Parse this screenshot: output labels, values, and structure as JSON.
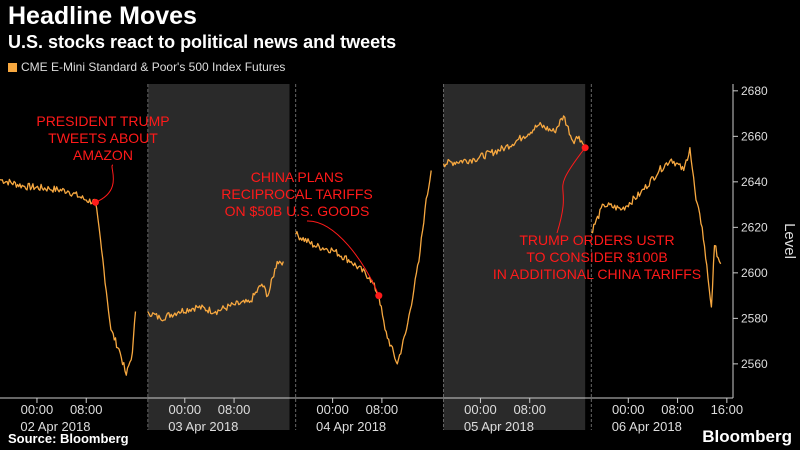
{
  "title": "Headline Moves",
  "subtitle": "U.S. stocks react to political news and tweets",
  "source": "Source: Bloomberg",
  "brand": "Bloomberg",
  "colors": {
    "line": "#f7a840",
    "annotation": "#ff1a1a",
    "shade": "#2a2a2a",
    "background": "#000000",
    "grid": "#666666"
  },
  "chart_data": {
    "type": "line",
    "series": [
      {
        "name": "CME E-Mini Standard & Poor's 500 Index Futures",
        "points": [
          [
            "2018-04-01 18:00",
            2641
          ],
          [
            "2018-04-01 22:00",
            2638
          ],
          [
            "2018-04-02 02:00",
            2637
          ],
          [
            "2018-04-02 05:00",
            2636
          ],
          [
            "2018-04-02 08:00",
            2632
          ],
          [
            "2018-04-02 09:30",
            2631
          ],
          [
            "2018-04-02 10:30",
            2610
          ],
          [
            "2018-04-02 12:00",
            2575
          ],
          [
            "2018-04-02 13:30",
            2565
          ],
          [
            "2018-04-02 14:30",
            2555
          ],
          [
            "2018-04-02 15:30",
            2565
          ],
          [
            "2018-04-02 16:00",
            2583
          ],
          [
            "2018-04-02 18:00",
            2583
          ],
          [
            "2018-04-02 20:00",
            2580
          ],
          [
            "2018-04-02 23:00",
            2583
          ],
          [
            "2018-04-03 02:00",
            2585
          ],
          [
            "2018-04-03 05:00",
            2583
          ],
          [
            "2018-04-03 08:00",
            2586
          ],
          [
            "2018-04-03 10:30",
            2587
          ],
          [
            "2018-04-03 12:30",
            2595
          ],
          [
            "2018-04-03 13:30",
            2590
          ],
          [
            "2018-04-03 15:00",
            2605
          ],
          [
            "2018-04-03 16:00",
            2605
          ],
          [
            "2018-04-03 18:00",
            2617
          ],
          [
            "2018-04-03 21:00",
            2612
          ],
          [
            "2018-04-04 00:00",
            2610
          ],
          [
            "2018-04-04 03:00",
            2605
          ],
          [
            "2018-04-04 06:00",
            2598
          ],
          [
            "2018-04-04 07:30",
            2590
          ],
          [
            "2018-04-04 08:30",
            2575
          ],
          [
            "2018-04-04 10:30",
            2560
          ],
          [
            "2018-04-04 12:00",
            2575
          ],
          [
            "2018-04-04 14:00",
            2605
          ],
          [
            "2018-04-04 15:00",
            2628
          ],
          [
            "2018-04-04 16:00",
            2645
          ],
          [
            "2018-04-04 18:00",
            2648
          ],
          [
            "2018-04-04 23:00",
            2650
          ],
          [
            "2018-04-05 04:00",
            2655
          ],
          [
            "2018-04-05 07:00",
            2660
          ],
          [
            "2018-04-05 09:30",
            2665
          ],
          [
            "2018-04-05 12:00",
            2662
          ],
          [
            "2018-04-05 13:30",
            2669
          ],
          [
            "2018-04-05 15:00",
            2658
          ],
          [
            "2018-04-05 16:00",
            2660
          ],
          [
            "2018-04-05 17:00",
            2655
          ],
          [
            "2018-04-05 18:00",
            2618
          ],
          [
            "2018-04-05 20:00",
            2630
          ],
          [
            "2018-04-05 23:00",
            2628
          ],
          [
            "2018-04-06 02:00",
            2635
          ],
          [
            "2018-04-06 05:00",
            2645
          ],
          [
            "2018-04-06 07:00",
            2650
          ],
          [
            "2018-04-06 09:00",
            2645
          ],
          [
            "2018-04-06 10:00",
            2655
          ],
          [
            "2018-04-06 11:00",
            2632
          ],
          [
            "2018-04-06 12:00",
            2620
          ],
          [
            "2018-04-06 13:30",
            2585
          ],
          [
            "2018-04-06 14:00",
            2612
          ],
          [
            "2018-04-06 15:00",
            2604
          ]
        ]
      }
    ],
    "ylabel": "Level",
    "ylim": [
      2545,
      2683
    ],
    "yticks": [
      2560,
      2580,
      2600,
      2620,
      2640,
      2660,
      2680
    ],
    "xlim": [
      "2018-04-01 18:00",
      "2018-04-06 17:00"
    ],
    "session_starts": [
      "2018-04-01 18:00",
      "2018-04-02 18:00",
      "2018-04-03 18:00",
      "2018-04-04 18:00",
      "2018-04-05 18:00"
    ],
    "shaded_sessions": [
      [
        "2018-04-02 18:00",
        "2018-04-03 17:00"
      ],
      [
        "2018-04-04 18:00",
        "2018-04-05 17:00"
      ]
    ],
    "xticks": [
      {
        "t": "2018-04-02 00:00",
        "label": "00:00"
      },
      {
        "t": "2018-04-02 08:00",
        "label": "08:00"
      },
      {
        "t": "2018-04-03 00:00",
        "label": "00:00"
      },
      {
        "t": "2018-04-03 08:00",
        "label": "08:00"
      },
      {
        "t": "2018-04-04 00:00",
        "label": "00:00"
      },
      {
        "t": "2018-04-04 08:00",
        "label": "08:00"
      },
      {
        "t": "2018-04-05 00:00",
        "label": "00:00"
      },
      {
        "t": "2018-04-05 08:00",
        "label": "08:00"
      },
      {
        "t": "2018-04-06 00:00",
        "label": "00:00"
      },
      {
        "t": "2018-04-06 08:00",
        "label": "08:00"
      },
      {
        "t": "2018-04-06 16:00",
        "label": "16:00"
      }
    ],
    "date_labels": [
      {
        "t": "2018-04-02 03:00",
        "label": "02 Apr 2018"
      },
      {
        "t": "2018-04-03 03:00",
        "label": "03 Apr 2018"
      },
      {
        "t": "2018-04-04 03:00",
        "label": "04 Apr 2018"
      },
      {
        "t": "2018-04-05 03:00",
        "label": "05 Apr 2018"
      },
      {
        "t": "2018-04-06 03:00",
        "label": "06 Apr 2018"
      }
    ],
    "annotations": [
      {
        "lines": [
          "PRESIDENT TRUMP",
          "TWEETS ABOUT",
          "AMAZON"
        ],
        "t": "2018-04-02 09:30",
        "y": 2631
      },
      {
        "lines": [
          "CHINA PLANS",
          "RECIPROCAL TARIFFS",
          "ON $50B U.S. GOODS"
        ],
        "t": "2018-04-04 07:30",
        "y": 2590
      },
      {
        "lines": [
          "TRUMP ORDERS USTR",
          "TO CONSIDER $100B",
          "IN ADDITIONAL CHINA TARIFFS"
        ],
        "t": "2018-04-05 17:00",
        "y": 2655
      }
    ],
    "grid": false,
    "legend_position": "top-left"
  }
}
